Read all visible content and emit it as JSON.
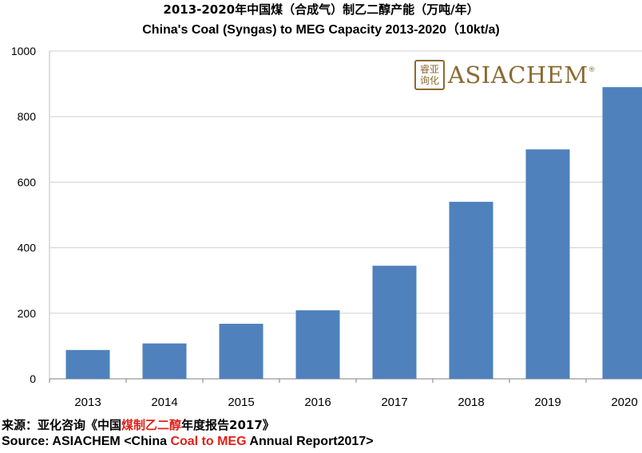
{
  "colors": {
    "bar": "#4f81bd",
    "grid": "#d0d0d0",
    "axis": "#7f7f7f",
    "logo": "#8a6a32",
    "highlight": "#e0211a"
  },
  "titles": {
    "cn": "2013-2020年中国煤（合成气）制乙二醇产能（万吨/年）",
    "en": "China's Coal (Syngas) to MEG Capacity 2013-2020（10kt/a)"
  },
  "logo": {
    "seal_chars": [
      "睿",
      "亚",
      "询",
      "化"
    ],
    "text": "ASIACHEM",
    "reg": "®"
  },
  "source": {
    "cn_prefix": "来源：亚化咨询《中国",
    "cn_highlight": "煤制乙二醇",
    "cn_suffix": "年度报告2017》",
    "en_prefix": "Source: ASIACHEM <China ",
    "en_highlight": "Coal  to MEG",
    "en_suffix": " Annual Report2017>"
  },
  "chart_data": {
    "type": "bar",
    "title": "China's Coal (Syngas) to MEG Capacity 2013-2020（10kt/a)",
    "categories": [
      "2013",
      "2014",
      "2015",
      "2016",
      "2017",
      "2018",
      "2019",
      "2020"
    ],
    "values": [
      88,
      108,
      168,
      209,
      345,
      540,
      700,
      890
    ],
    "ylim": [
      0,
      1000
    ],
    "yticks": [
      0,
      200,
      400,
      600,
      800,
      1000
    ],
    "xlabel": "",
    "ylabel": "",
    "grid": true,
    "legend": "none"
  }
}
